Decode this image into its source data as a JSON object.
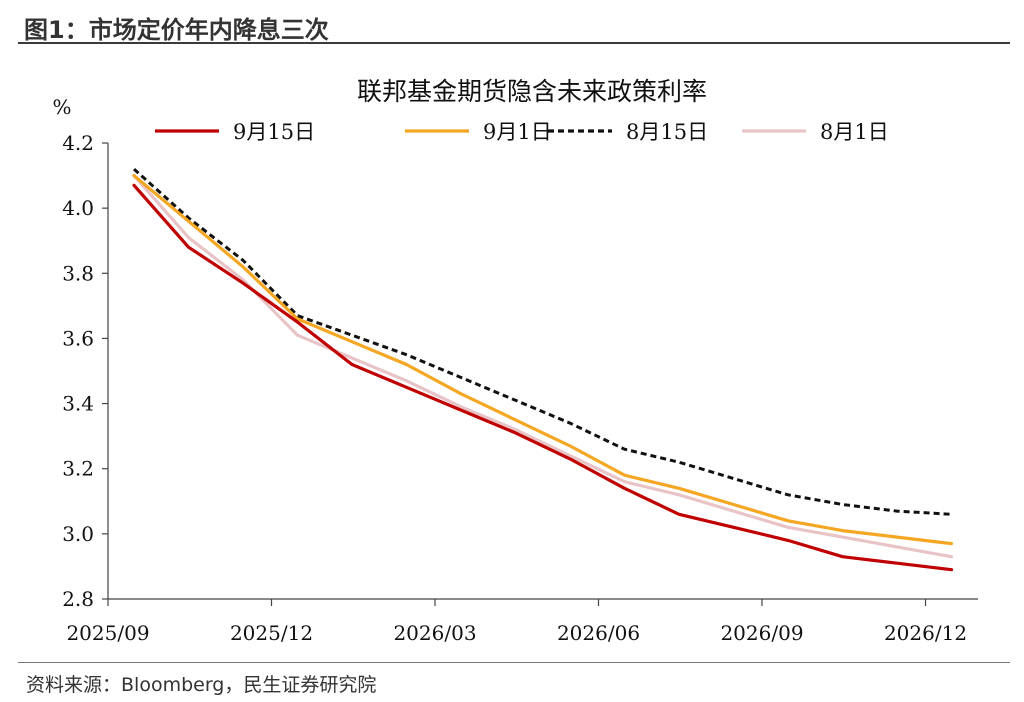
{
  "figure": {
    "title": "图1：市场定价年内降息三次",
    "source": "资料来源：Bloomberg，民生证券研究院"
  },
  "chart_data": {
    "type": "line",
    "title": "联邦基金期货隐含未来政策利率",
    "ylabel": "%",
    "xlabel": "",
    "ylim": [
      2.8,
      4.2
    ],
    "yticks": [
      "4.2",
      "4.0",
      "3.8",
      "3.6",
      "3.4",
      "3.2",
      "3.0",
      "2.8"
    ],
    "x_tick_labels": [
      "2025/09",
      "2025/12",
      "2026/03",
      "2026/06",
      "2026/09",
      "2026/12"
    ],
    "x": [
      "2025/09",
      "2025/10",
      "2025/11",
      "2025/12",
      "2026/01",
      "2026/02",
      "2026/03",
      "2026/04",
      "2026/05",
      "2026/06",
      "2026/07",
      "2026/08",
      "2026/09",
      "2026/10",
      "2026/11",
      "2026/12"
    ],
    "grid": false,
    "legend_position": "top",
    "series": [
      {
        "name": "9月15日",
        "color": "#C00000",
        "style": "solid",
        "values": [
          4.07,
          3.88,
          3.77,
          3.65,
          3.52,
          3.45,
          3.38,
          3.31,
          3.23,
          3.14,
          3.06,
          3.02,
          2.98,
          2.93,
          2.91,
          2.89
        ]
      },
      {
        "name": "9月1日",
        "color": "#F5A623",
        "style": "solid",
        "values": [
          4.1,
          3.96,
          3.82,
          3.66,
          3.59,
          3.52,
          3.43,
          3.35,
          3.27,
          3.18,
          3.14,
          3.09,
          3.04,
          3.01,
          2.99,
          2.97
        ]
      },
      {
        "name": "8月15日",
        "color": "#111111",
        "style": "dashed",
        "values": [
          4.12,
          3.97,
          3.84,
          3.67,
          3.61,
          3.55,
          3.48,
          3.41,
          3.34,
          3.26,
          3.22,
          3.17,
          3.12,
          3.09,
          3.07,
          3.06
        ]
      },
      {
        "name": "8月1日",
        "color": "#E8C4C6",
        "style": "solid",
        "values": [
          4.1,
          3.91,
          3.78,
          3.61,
          3.54,
          3.47,
          3.39,
          3.32,
          3.24,
          3.16,
          3.12,
          3.07,
          3.02,
          2.99,
          2.96,
          2.93
        ]
      }
    ]
  }
}
